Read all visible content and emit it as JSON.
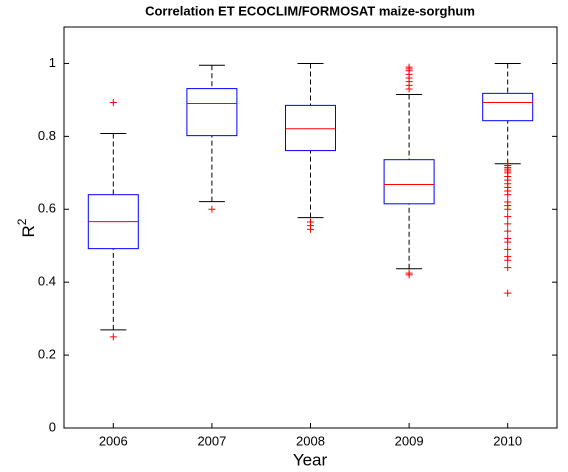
{
  "chart_data": {
    "type": "box",
    "title": "Correlation ET ECOCLIM/FORMOSAT maize-sorghum",
    "xlabel": "Year",
    "ylabel": "R",
    "ylabel_superscript": "2",
    "categories": [
      "2006",
      "2007",
      "2008",
      "2009",
      "2010"
    ],
    "ylim": [
      0,
      1.1
    ],
    "yticks": [
      0,
      0.2,
      0.4,
      0.6,
      0.8,
      1
    ],
    "box_color": "#0000ff",
    "median_color": "#ff0000",
    "whisker_color": "#000000",
    "outlier_color": "#ff0000",
    "boxes": [
      {
        "whisker_low": 0.269,
        "q1": 0.492,
        "median": 0.566,
        "q3": 0.64,
        "whisker_high": 0.808,
        "outliers": [
          0.893,
          0.25
        ]
      },
      {
        "whisker_low": 0.621,
        "q1": 0.802,
        "median": 0.89,
        "q3": 0.931,
        "whisker_high": 0.995,
        "outliers": [
          0.6
        ]
      },
      {
        "whisker_low": 0.577,
        "q1": 0.761,
        "median": 0.821,
        "q3": 0.885,
        "whisker_high": 1.0,
        "outliers": [
          0.565,
          0.555,
          0.545
        ]
      },
      {
        "whisker_low": 0.437,
        "q1": 0.615,
        "median": 0.668,
        "q3": 0.736,
        "whisker_high": 0.915,
        "outliers": [
          0.99,
          0.985,
          0.98,
          0.97,
          0.96,
          0.95,
          0.94,
          0.93,
          0.425,
          0.42
        ]
      },
      {
        "whisker_low": 0.725,
        "q1": 0.843,
        "median": 0.893,
        "q3": 0.918,
        "whisker_high": 1.0,
        "outliers": [
          0.72,
          0.715,
          0.71,
          0.705,
          0.7,
          0.69,
          0.68,
          0.67,
          0.66,
          0.65,
          0.64,
          0.62,
          0.61,
          0.6,
          0.58,
          0.56,
          0.54,
          0.52,
          0.51,
          0.49,
          0.47,
          0.46,
          0.44,
          0.37
        ]
      }
    ]
  }
}
